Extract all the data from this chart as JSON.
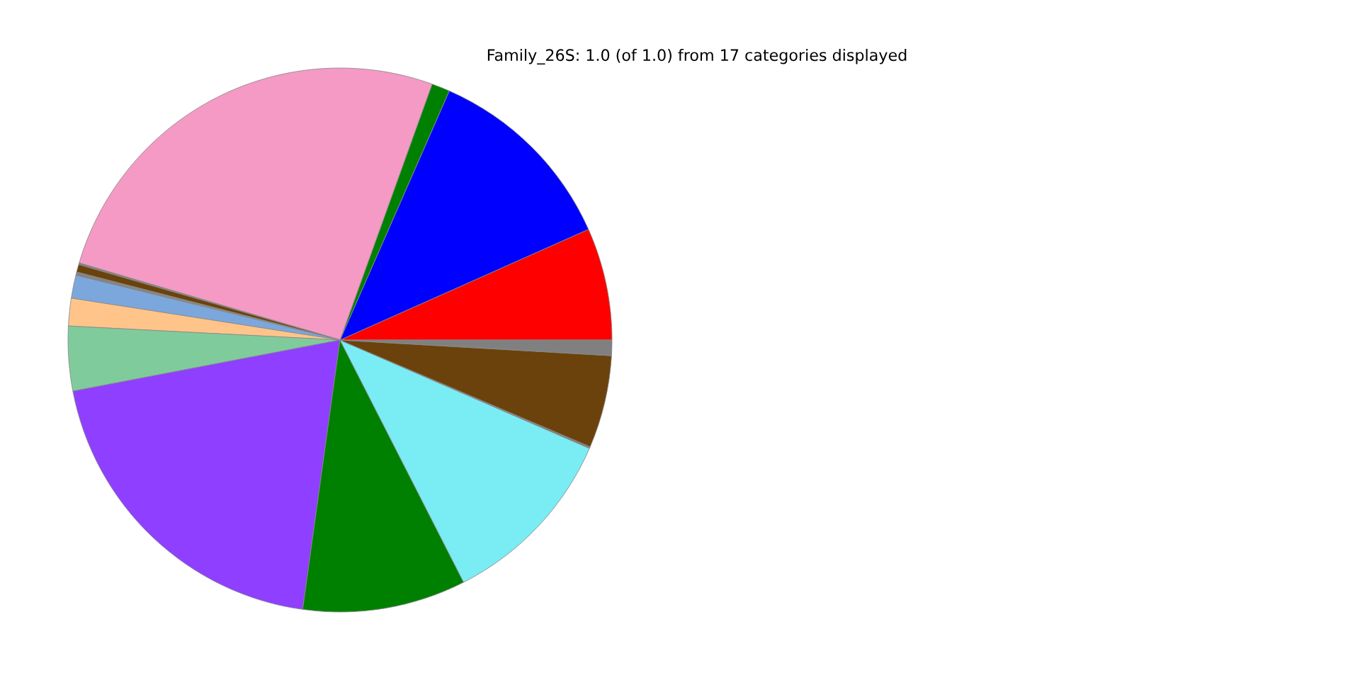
{
  "chart_data": {
    "type": "pie",
    "title": "Family_26S: 1.0 (of 1.0) from 17 categories displayed",
    "categories": [
      null,
      null,
      null,
      null,
      null,
      null,
      null,
      null,
      null,
      null,
      null,
      null,
      null,
      null,
      null,
      null,
      null
    ],
    "values": [
      6.67,
      11.75,
      1.08,
      25.93,
      0.1,
      0.45,
      0.1,
      0.1,
      1.36,
      1.64,
      3.83,
      19.8,
      9.7,
      10.97,
      0.1,
      5.5,
      0.92
    ],
    "colors": [
      "#ff0000",
      "#0000ff",
      "#008000",
      "#f49ac4",
      "#808080",
      "#6b420b",
      "#808080",
      "#808080",
      "#7ba7dc",
      "#ffc48a",
      "#80cb9c",
      "#8f3fff",
      "#008000",
      "#79ecf4",
      "#808080",
      "#6b420b",
      "#808080"
    ]
  }
}
